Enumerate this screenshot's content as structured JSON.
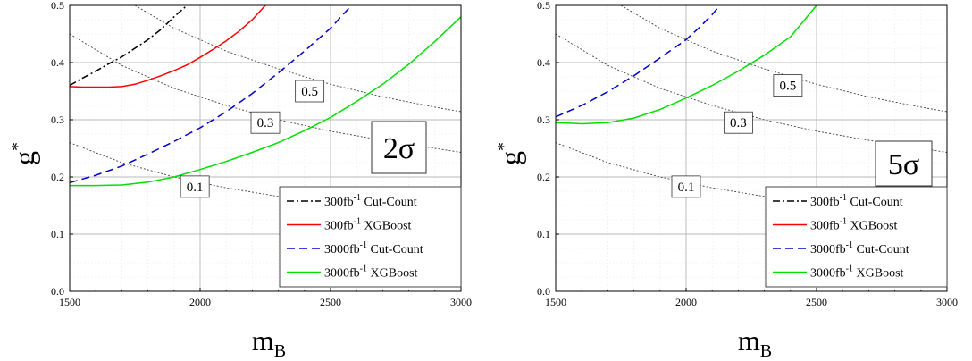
{
  "chart_data": [
    {
      "type": "line",
      "xlabel": "m",
      "xlabel_sub": "B",
      "ylabel": "g",
      "ylabel_sup": "*",
      "xlim": [
        1500,
        3000
      ],
      "ylim": [
        0.0,
        0.5
      ],
      "xticks": [
        "1500",
        "2000",
        "2500",
        "3000"
      ],
      "yticks": [
        "0.0",
        "0.1",
        "0.2",
        "0.3",
        "0.4",
        "0.5"
      ],
      "grid": true,
      "legend_position": "bottom-right",
      "significance_label": "2σ",
      "series": [
        {
          "name_prefix": "300fb",
          "name_sup": "-1",
          "name_suffix": " Cut-Count",
          "color": "#000000",
          "dash": "dashdot",
          "x": [
            1500,
            1550,
            1600,
            1650,
            1700,
            1750,
            1800,
            1850,
            1900,
            1950
          ],
          "y": [
            0.36,
            0.373,
            0.385,
            0.398,
            0.41,
            0.425,
            0.44,
            0.458,
            0.48,
            0.5
          ]
        },
        {
          "name_prefix": "300fb",
          "name_sup": "-1",
          "name_suffix": " XGBoost",
          "color": "#ff0000",
          "dash": "solid",
          "x": [
            1500,
            1550,
            1600,
            1650,
            1700,
            1750,
            1800,
            1850,
            1900,
            1950,
            2000,
            2050,
            2100,
            2150,
            2200,
            2250
          ],
          "y": [
            0.358,
            0.357,
            0.357,
            0.357,
            0.358,
            0.362,
            0.369,
            0.377,
            0.386,
            0.396,
            0.409,
            0.423,
            0.438,
            0.455,
            0.475,
            0.5
          ]
        },
        {
          "name_prefix": "3000fb",
          "name_sup": "-1",
          "name_suffix": " Cut-Count",
          "color": "#0000cc",
          "dash": "dashed",
          "x": [
            1500,
            1600,
            1700,
            1800,
            1900,
            2000,
            2100,
            2200,
            2300,
            2400,
            2500,
            2580
          ],
          "y": [
            0.19,
            0.203,
            0.219,
            0.24,
            0.262,
            0.286,
            0.314,
            0.346,
            0.382,
            0.42,
            0.46,
            0.5
          ]
        },
        {
          "name_prefix": "3000fb",
          "name_sup": "-1",
          "name_suffix": " XGBoost",
          "color": "#00e000",
          "dash": "solid",
          "x": [
            1500,
            1600,
            1700,
            1800,
            1900,
            2000,
            2100,
            2200,
            2300,
            2400,
            2500,
            2600,
            2700,
            2800,
            2900,
            3000
          ],
          "y": [
            0.185,
            0.185,
            0.186,
            0.191,
            0.2,
            0.213,
            0.227,
            0.243,
            0.26,
            0.281,
            0.304,
            0.332,
            0.362,
            0.397,
            0.437,
            0.48
          ]
        }
      ],
      "contours": [
        {
          "label": "0.1",
          "x": [
            1500,
            1700,
            1900,
            2100,
            2300,
            2500
          ],
          "y": [
            0.26,
            0.225,
            0.2,
            0.181,
            0.166,
            0.155
          ],
          "label_x": 1980,
          "label_y": 0.183
        },
        {
          "label": "0.3",
          "x": [
            1500,
            1700,
            1900,
            2100,
            2300,
            2500,
            2700,
            2900,
            3000
          ],
          "y": [
            0.45,
            0.395,
            0.355,
            0.325,
            0.3,
            0.28,
            0.264,
            0.25,
            0.243
          ],
          "label_x": 2250,
          "label_y": 0.295
        },
        {
          "label": "0.5",
          "x": [
            1750,
            1900,
            2100,
            2300,
            2500,
            2700,
            2900,
            3000
          ],
          "y": [
            0.5,
            0.46,
            0.42,
            0.389,
            0.362,
            0.34,
            0.322,
            0.314
          ],
          "label_x": 2420,
          "label_y": 0.35
        }
      ]
    },
    {
      "type": "line",
      "xlabel": "m",
      "xlabel_sub": "B",
      "ylabel": "g",
      "ylabel_sup": "*",
      "xlim": [
        1500,
        3000
      ],
      "ylim": [
        0.0,
        0.5
      ],
      "xticks": [
        "1500",
        "2000",
        "2500",
        "3000"
      ],
      "yticks": [
        "0.0",
        "0.1",
        "0.2",
        "0.3",
        "0.4",
        "0.5"
      ],
      "grid": true,
      "legend_position": "bottom-right",
      "significance_label": "5σ",
      "series": [
        {
          "name_prefix": "300fb",
          "name_sup": "-1",
          "name_suffix": " Cut-Count",
          "color": "#000000",
          "dash": "dashdot",
          "x": [],
          "y": []
        },
        {
          "name_prefix": "300fb",
          "name_sup": "-1",
          "name_suffix": " XGBoost",
          "color": "#ff0000",
          "dash": "solid",
          "x": [],
          "y": []
        },
        {
          "name_prefix": "3000fb",
          "name_sup": "-1",
          "name_suffix": " Cut-Count",
          "color": "#0000cc",
          "dash": "dashed",
          "x": [
            1500,
            1600,
            1700,
            1800,
            1900,
            2000,
            2050,
            2100,
            2130
          ],
          "y": [
            0.305,
            0.325,
            0.349,
            0.377,
            0.408,
            0.44,
            0.461,
            0.484,
            0.5
          ]
        },
        {
          "name_prefix": "3000fb",
          "name_sup": "-1",
          "name_suffix": " XGBoost",
          "color": "#00e000",
          "dash": "solid",
          "x": [
            1500,
            1600,
            1700,
            1800,
            1900,
            2000,
            2100,
            2200,
            2300,
            2400,
            2500
          ],
          "y": [
            0.295,
            0.293,
            0.295,
            0.303,
            0.318,
            0.338,
            0.36,
            0.385,
            0.413,
            0.445,
            0.5
          ]
        }
      ],
      "contours": [
        {
          "label": "0.1",
          "x": [
            1500,
            1700,
            1900,
            2100,
            2300,
            2500,
            2700,
            2900,
            3000
          ],
          "y": [
            0.26,
            0.225,
            0.2,
            0.181,
            0.166,
            0.155,
            0.145,
            0.138,
            0.135
          ],
          "label_x": 2000,
          "label_y": 0.183
        },
        {
          "label": "0.3",
          "x": [
            1500,
            1700,
            1900,
            2100,
            2300,
            2500,
            2700,
            2900,
            3000
          ],
          "y": [
            0.45,
            0.395,
            0.355,
            0.325,
            0.3,
            0.28,
            0.264,
            0.25,
            0.243
          ],
          "label_x": 2200,
          "label_y": 0.295
        },
        {
          "label": "0.5",
          "x": [
            1750,
            1900,
            2100,
            2300,
            2500,
            2700,
            2900,
            3000
          ],
          "y": [
            0.5,
            0.46,
            0.42,
            0.389,
            0.362,
            0.34,
            0.322,
            0.314
          ],
          "label_x": 2390,
          "label_y": 0.36
        }
      ]
    }
  ]
}
